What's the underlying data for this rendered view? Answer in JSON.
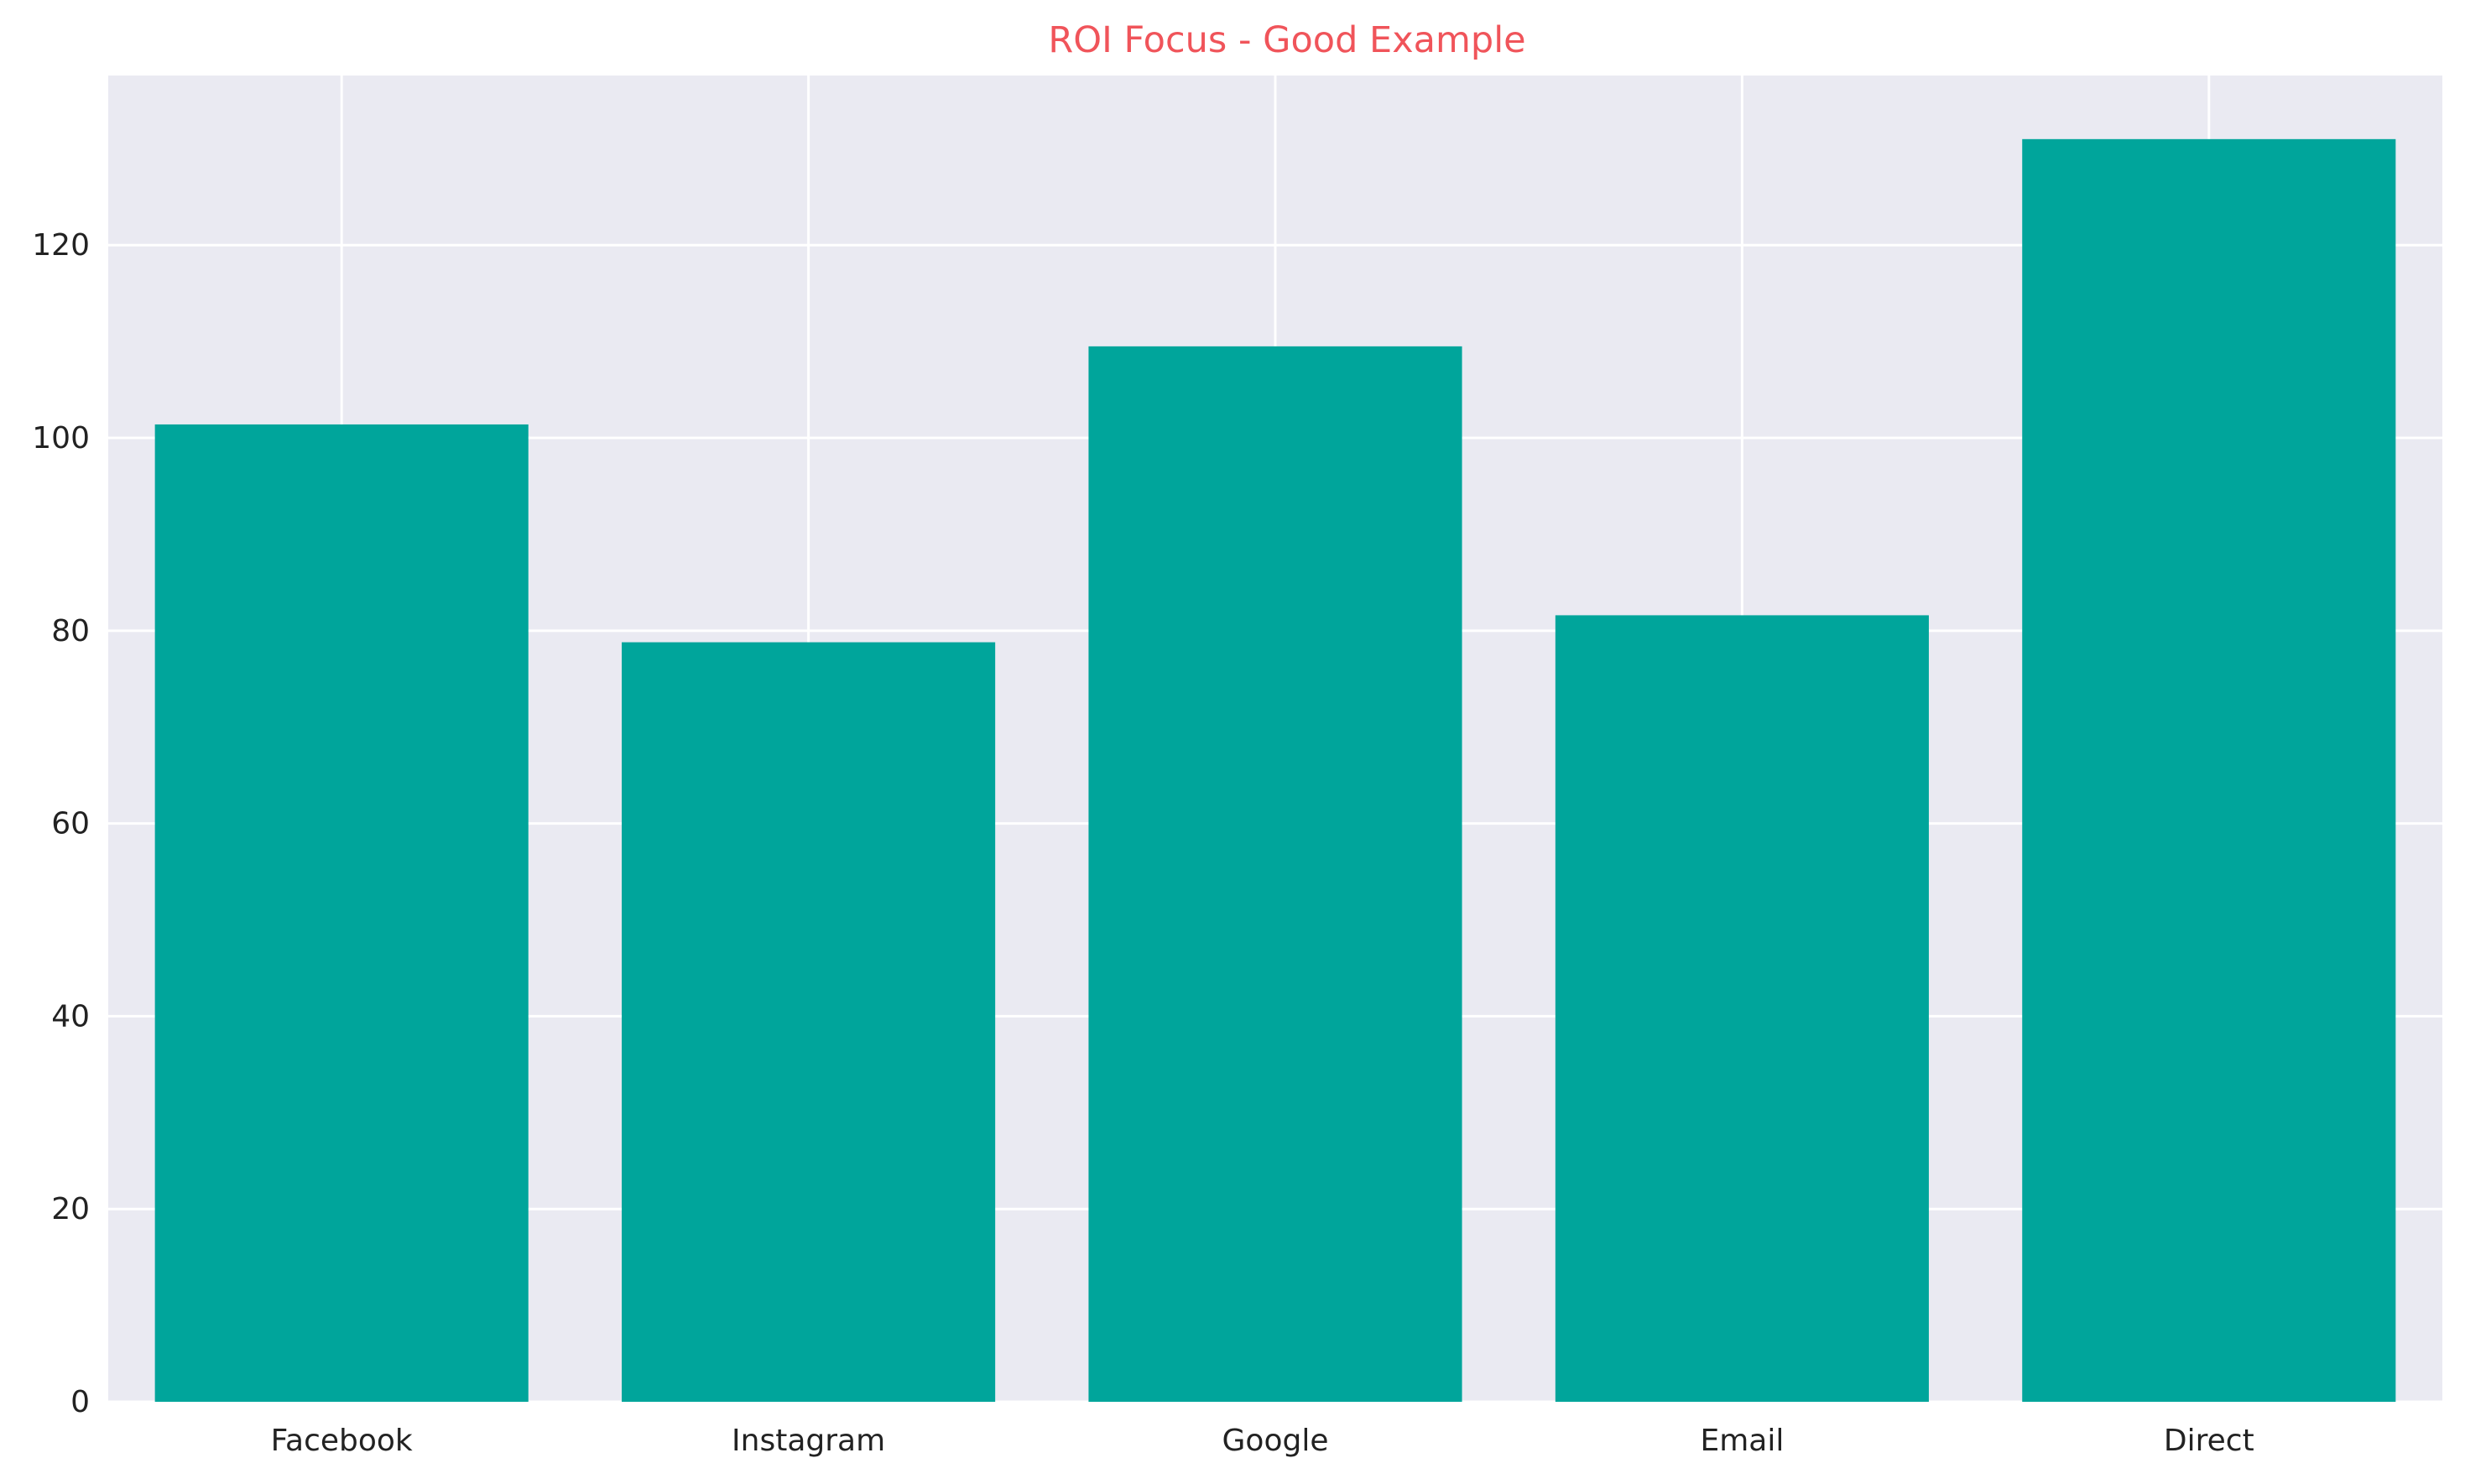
{
  "chart_data": {
    "type": "bar",
    "title": "ROI Focus - Good Example",
    "xlabel": "",
    "ylabel": "",
    "categories": [
      "Facebook",
      "Instagram",
      "Google",
      "Email",
      "Direct"
    ],
    "values": [
      101.4,
      78.8,
      109.5,
      81.6,
      131.0
    ],
    "ylim": [
      0,
      137.6
    ],
    "yticks": [
      0,
      20,
      40,
      60,
      80,
      100,
      120
    ],
    "grid": true,
    "legend": "none",
    "colors": {
      "bar": "#00A59B",
      "title": "#F0545A",
      "plot_background": "#EAEAF2",
      "grid": "#FFFFFF"
    }
  }
}
